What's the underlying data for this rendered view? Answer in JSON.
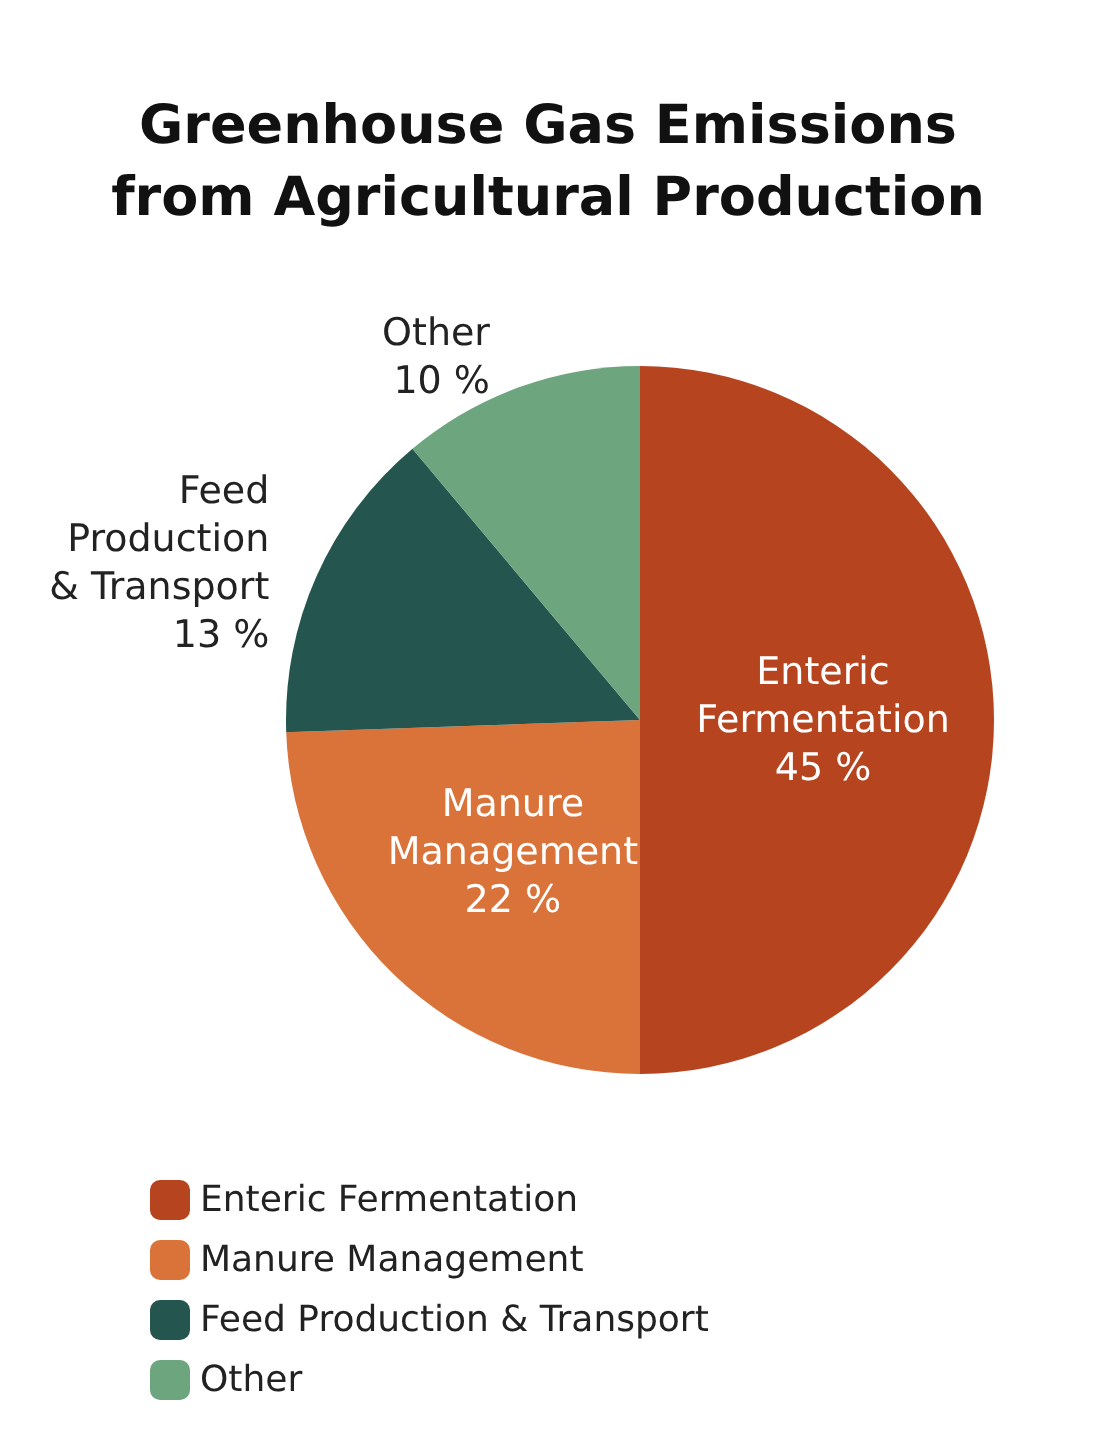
{
  "chart_data": {
    "type": "pie",
    "title": "Greenhouse Gas Emissions\nfrom Agricultural Production",
    "categories": [
      "Enteric Fermentation",
      "Manure Management",
      "Feed Production & Transport",
      "Other"
    ],
    "values": [
      45,
      22,
      13,
      10
    ],
    "colors": [
      "#b5441f",
      "#d9733a",
      "#24564f",
      "#6da57f"
    ],
    "value_labels": [
      "45 %",
      "22 %",
      "13 %",
      "10 %"
    ],
    "legend": "bottom left"
  }
}
